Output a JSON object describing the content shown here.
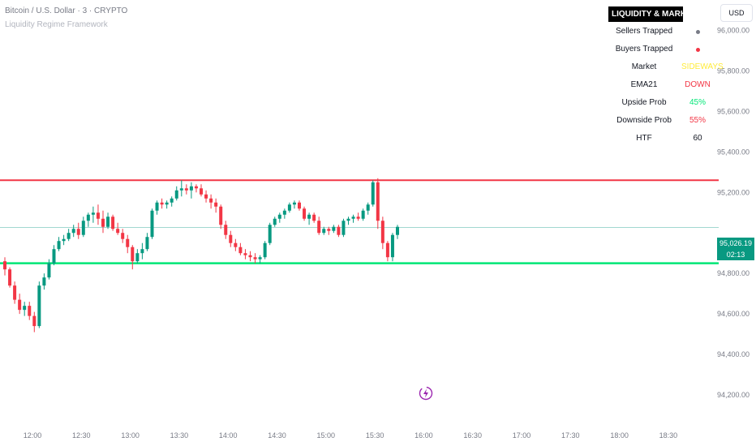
{
  "header": {
    "title": "Bitcoin / U.S. Dollar · 3 · CRYPTO",
    "subtitle": "Liquidity Regime Framework"
  },
  "currency_button": "USD",
  "panel": {
    "title": "LIQUIDITY & MARKET",
    "rows": [
      {
        "label": "Sellers Trapped",
        "value": "",
        "dot_color": "#787b86"
      },
      {
        "label": "Buyers Trapped",
        "value": "",
        "dot_color": "#f23645"
      },
      {
        "label": "Market",
        "value": "SIDEWAYS",
        "color": "#ffeb3b"
      },
      {
        "label": "EMA21",
        "value": "DOWN",
        "color": "#f23645"
      },
      {
        "label": "Upside Prob",
        "value": "45%",
        "color": "#00e676"
      },
      {
        "label": "Downside Prob",
        "value": "55%",
        "color": "#f23645"
      },
      {
        "label": "HTF",
        "value": "60",
        "color": "#131722"
      }
    ]
  },
  "price_tag": {
    "price": "95,026.19",
    "countdown": "02:13",
    "color": "#089981"
  },
  "colors": {
    "up": "#089981",
    "down": "#f23645",
    "resistance": "#f23645",
    "support": "#00e676",
    "axis_text": "#787b86"
  },
  "chart_data": {
    "type": "candlestick",
    "y_ticks": [
      "96,000.00",
      "95,800.00",
      "95,600.00",
      "95,400.00",
      "95,200.00",
      "94,800.00",
      "94,600.00",
      "94,400.00",
      "94,200.00"
    ],
    "y_tick_values": [
      96000,
      95800,
      95600,
      95400,
      95200,
      94800,
      94600,
      94400,
      94200
    ],
    "x_ticks": [
      "12:00",
      "12:30",
      "13:00",
      "13:30",
      "14:00",
      "14:30",
      "15:00",
      "15:30",
      "16:00",
      "16:30",
      "17:00",
      "17:30",
      "18:00",
      "18:30"
    ],
    "ylim": [
      94100,
      96150
    ],
    "resistance": 95260,
    "support": 94850,
    "last_price": 95026.19,
    "candles": [
      [
        94860,
        94880,
        94790,
        94820
      ],
      [
        94820,
        94830,
        94730,
        94740
      ],
      [
        94740,
        94760,
        94650,
        94670
      ],
      [
        94670,
        94700,
        94600,
        94620
      ],
      [
        94620,
        94660,
        94590,
        94640
      ],
      [
        94640,
        94660,
        94570,
        94590
      ],
      [
        94590,
        94610,
        94510,
        94540
      ],
      [
        94540,
        94760,
        94530,
        94740
      ],
      [
        94740,
        94800,
        94720,
        94780
      ],
      [
        94780,
        94870,
        94770,
        94850
      ],
      [
        94850,
        94940,
        94840,
        94920
      ],
      [
        94920,
        94980,
        94910,
        94960
      ],
      [
        94960,
        94990,
        94940,
        94970
      ],
      [
        94970,
        95020,
        94960,
        95000
      ],
      [
        95000,
        95040,
        94980,
        95020
      ],
      [
        95020,
        95050,
        94970,
        94990
      ],
      [
        94990,
        95080,
        94980,
        95060
      ],
      [
        95060,
        95100,
        95030,
        95090
      ],
      [
        95090,
        95130,
        95050,
        95100
      ],
      [
        95100,
        95140,
        95040,
        95070
      ],
      [
        95070,
        95110,
        95000,
        95030
      ],
      [
        95030,
        95100,
        95020,
        95080
      ],
      [
        95080,
        95090,
        95010,
        95020
      ],
      [
        95020,
        95050,
        94990,
        95000
      ],
      [
        95000,
        95020,
        94950,
        94970
      ],
      [
        94970,
        94990,
        94900,
        94930
      ],
      [
        94930,
        94940,
        94820,
        94860
      ],
      [
        94860,
        94920,
        94850,
        94900
      ],
      [
        94900,
        94950,
        94870,
        94920
      ],
      [
        94920,
        95000,
        94910,
        94980
      ],
      [
        94980,
        95120,
        94970,
        95110
      ],
      [
        95110,
        95160,
        95090,
        95150
      ],
      [
        95150,
        95170,
        95120,
        95140
      ],
      [
        95140,
        95160,
        95120,
        95150
      ],
      [
        95150,
        95180,
        95130,
        95170
      ],
      [
        95170,
        95230,
        95160,
        95210
      ],
      [
        95210,
        95260,
        95180,
        95220
      ],
      [
        95220,
        95240,
        95190,
        95210
      ],
      [
        95210,
        95250,
        95170,
        95230
      ],
      [
        95230,
        95240,
        95200,
        95220
      ],
      [
        95220,
        95240,
        95180,
        95190
      ],
      [
        95190,
        95210,
        95150,
        95170
      ],
      [
        95170,
        95190,
        95120,
        95150
      ],
      [
        95150,
        95170,
        95100,
        95130
      ],
      [
        95130,
        95140,
        95020,
        95040
      ],
      [
        95040,
        95060,
        94970,
        94990
      ],
      [
        94990,
        95010,
        94930,
        94950
      ],
      [
        94950,
        94970,
        94910,
        94930
      ],
      [
        94930,
        94950,
        94890,
        94900
      ],
      [
        94900,
        94920,
        94870,
        94890
      ],
      [
        94890,
        94910,
        94860,
        94880
      ],
      [
        94880,
        94900,
        94850,
        94870
      ],
      [
        94870,
        94890,
        94850,
        94880
      ],
      [
        94880,
        94960,
        94870,
        94950
      ],
      [
        94950,
        95050,
        94940,
        95040
      ],
      [
        95040,
        95080,
        95030,
        95070
      ],
      [
        95070,
        95100,
        95050,
        95090
      ],
      [
        95090,
        95120,
        95070,
        95110
      ],
      [
        95110,
        95150,
        95100,
        95140
      ],
      [
        95140,
        95160,
        95120,
        95150
      ],
      [
        95150,
        95160,
        95110,
        95120
      ],
      [
        95120,
        95130,
        95060,
        95070
      ],
      [
        95070,
        95100,
        95040,
        95090
      ],
      [
        95090,
        95100,
        95050,
        95060
      ],
      [
        95060,
        95080,
        94990,
        95000
      ],
      [
        95000,
        95030,
        94990,
        95020
      ],
      [
        95020,
        95030,
        94990,
        95010
      ],
      [
        95010,
        95040,
        95000,
        95030
      ],
      [
        95030,
        95040,
        94980,
        94990
      ],
      [
        94990,
        95070,
        94980,
        95060
      ],
      [
        95060,
        95080,
        95040,
        95070
      ],
      [
        95070,
        95090,
        95050,
        95080
      ],
      [
        95080,
        95100,
        95060,
        95070
      ],
      [
        95070,
        95120,
        95060,
        95110
      ],
      [
        95110,
        95150,
        95090,
        95140
      ],
      [
        95140,
        95260,
        95130,
        95250
      ],
      [
        95250,
        95270,
        95020,
        95060
      ],
      [
        95060,
        95080,
        94920,
        94950
      ],
      [
        94950,
        94960,
        94860,
        94880
      ],
      [
        94880,
        95000,
        94860,
        94990
      ],
      [
        94990,
        95040,
        94970,
        95030
      ]
    ]
  }
}
